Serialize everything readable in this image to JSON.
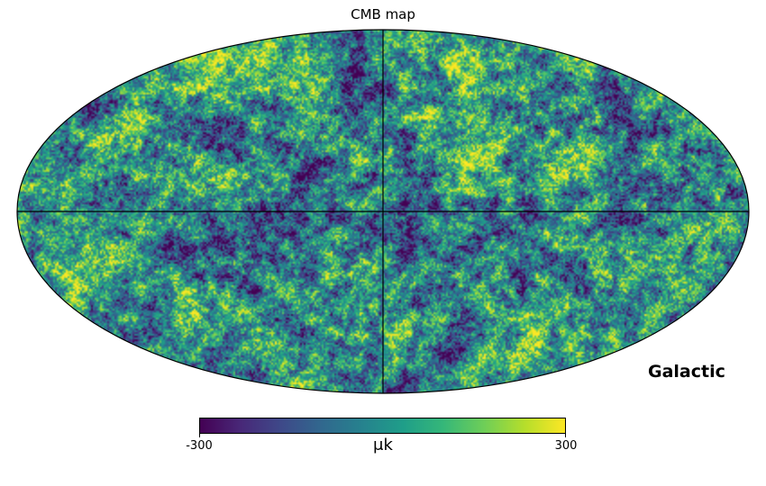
{
  "title": "CMB map",
  "coordinate_system": "Galactic",
  "projection": "mollweide",
  "colormap": {
    "name": "viridis",
    "stops": [
      "#440154",
      "#482878",
      "#3e4989",
      "#31688e",
      "#26828e",
      "#1f9e89",
      "#35b779",
      "#6ece58",
      "#b5de2b",
      "#fde725"
    ]
  },
  "colorbar": {
    "min_label": "-300",
    "max_label": "300",
    "min": -300,
    "max": 300,
    "unit": "μk"
  },
  "graticule": {
    "meridian_lon": 0,
    "equator_lat": 0,
    "line_color": "#000000"
  }
}
